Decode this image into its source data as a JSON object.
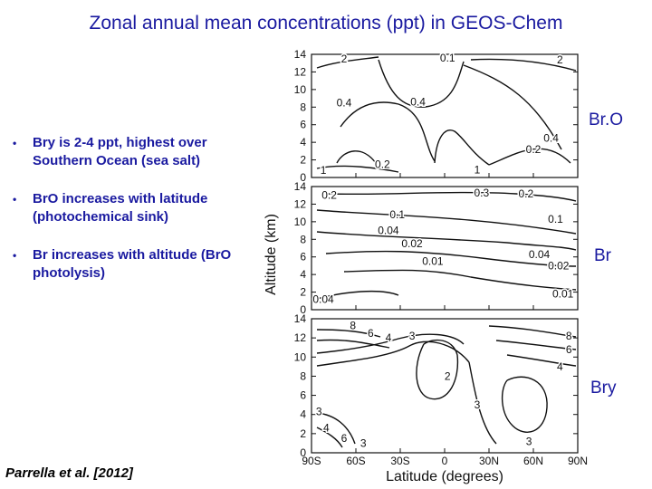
{
  "title": "Zonal annual mean concentrations (ppt) in GEOS-Chem",
  "bullets": [
    {
      "text": "Bry is 2-4 ppt, highest over Southern Ocean (sea salt)"
    },
    {
      "text": "BrO increases with latitude (photochemical sink)"
    },
    {
      "text": "Br increases with altitude (BrO photolysis)"
    }
  ],
  "citation": "Parrella et al. [2012]",
  "colors": {
    "accent": "#1a1aa0",
    "ink": "#000000"
  },
  "chart_data": [
    {
      "type": "contour",
      "name": "BrO",
      "panel_label": "Br.O",
      "xlim": [
        -90,
        90
      ],
      "ylim": [
        0,
        14
      ],
      "contour_labels": [
        {
          "text": "2",
          "lat": -68,
          "alt": 13.5
        },
        {
          "text": "0.1",
          "lat": 2,
          "alt": 13.6
        },
        {
          "text": "2",
          "lat": 78,
          "alt": 13.4
        },
        {
          "text": "0.4",
          "lat": -68,
          "alt": 8.5
        },
        {
          "text": "0.4",
          "lat": -18,
          "alt": 8.6
        },
        {
          "text": "0.4",
          "lat": 72,
          "alt": 4.5
        },
        {
          "text": "0.2",
          "lat": 60,
          "alt": 3.2
        },
        {
          "text": "0.2",
          "lat": -42,
          "alt": 1.5
        },
        {
          "text": "1",
          "lat": -82,
          "alt": 0.8
        },
        {
          "text": "1",
          "lat": 22,
          "alt": 0.9
        }
      ]
    },
    {
      "type": "contour",
      "name": "Br",
      "panel_label": "Br",
      "xlim": [
        -90,
        90
      ],
      "ylim": [
        0,
        14
      ],
      "contour_labels": [
        {
          "text": "0.2",
          "lat": -78,
          "alt": 13.0
        },
        {
          "text": "0.3",
          "lat": 25,
          "alt": 13.3
        },
        {
          "text": "0.2",
          "lat": 55,
          "alt": 13.2
        },
        {
          "text": "0.1",
          "lat": -32,
          "alt": 10.8
        },
        {
          "text": "0.1",
          "lat": 75,
          "alt": 10.3
        },
        {
          "text": "0.04",
          "lat": -38,
          "alt": 9.0
        },
        {
          "text": "0.02",
          "lat": -22,
          "alt": 7.5
        },
        {
          "text": "0.04",
          "lat": 64,
          "alt": 6.3
        },
        {
          "text": "0.01",
          "lat": -8,
          "alt": 5.5
        },
        {
          "text": "0.02",
          "lat": 77,
          "alt": 5.0
        },
        {
          "text": "0.04",
          "lat": -82,
          "alt": 1.2
        },
        {
          "text": "0.01",
          "lat": 80,
          "alt": 1.8
        }
      ]
    },
    {
      "type": "contour",
      "name": "Bry",
      "panel_label": "Bry",
      "xlim": [
        -90,
        90
      ],
      "ylim": [
        0,
        14
      ],
      "contour_labels": [
        {
          "text": "8",
          "lat": -62,
          "alt": 13.3
        },
        {
          "text": "6",
          "lat": -50,
          "alt": 12.5
        },
        {
          "text": "4",
          "lat": -38,
          "alt": 12.0
        },
        {
          "text": "3",
          "lat": -22,
          "alt": 12.2
        },
        {
          "text": "8",
          "lat": 84,
          "alt": 12.2
        },
        {
          "text": "6",
          "lat": 84,
          "alt": 10.8
        },
        {
          "text": "4",
          "lat": 78,
          "alt": 9.0
        },
        {
          "text": "2",
          "lat": 2,
          "alt": 8.0
        },
        {
          "text": "3",
          "lat": 22,
          "alt": 5.0
        },
        {
          "text": "3",
          "lat": -85,
          "alt": 4.3
        },
        {
          "text": "4",
          "lat": -80,
          "alt": 2.6
        },
        {
          "text": "6",
          "lat": -68,
          "alt": 1.5
        },
        {
          "text": "3",
          "lat": -55,
          "alt": 1.0
        },
        {
          "text": "3",
          "lat": 57,
          "alt": 1.2
        }
      ]
    }
  ],
  "shared_axes": {
    "ylabel": "Altitude (km)",
    "xlabel": "Latitude (degrees)",
    "yticks": [
      0,
      2,
      4,
      6,
      8,
      10,
      12,
      14
    ],
    "xticks": [
      -90,
      -60,
      -30,
      0,
      30,
      60,
      90
    ],
    "xtick_labels": [
      "90S",
      "60S",
      "30S",
      "0",
      "30N",
      "60N",
      "90N"
    ]
  }
}
